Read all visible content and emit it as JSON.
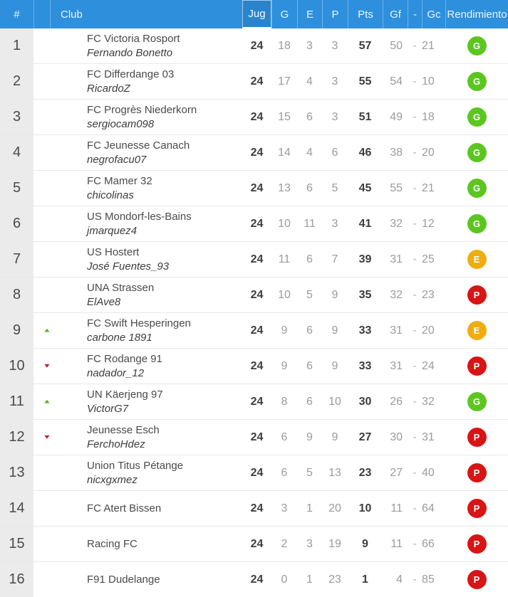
{
  "header": {
    "pos": "#",
    "club": "Club",
    "jug": "Jug",
    "g": "G",
    "e": "E",
    "p": "P",
    "pts": "Pts",
    "gf": "Gf",
    "dash": "-",
    "gc": "Gc",
    "rendimiento": "Rendimiento"
  },
  "score_separator": "-",
  "colors": {
    "header_bg": "#2E8FDC",
    "sorted_column_bg": "#2A84CD",
    "pos_column_bg": "#EBEBEB",
    "badge_green": "#5CC621",
    "badge_orange": "#EFAD10",
    "badge_red": "#D91414",
    "arrow_up_green": "#5AAD20",
    "arrow_down_red": "#C01E28"
  },
  "rows": [
    {
      "pos": "1",
      "movement": "none",
      "club": "FC Victoria Rosport",
      "manager": "Fernando Bonetto",
      "jug": "24",
      "g": "18",
      "e": "3",
      "p": "3",
      "pts": "57",
      "gf": "50",
      "gc": "21",
      "rend": "G"
    },
    {
      "pos": "2",
      "movement": "none",
      "club": "FC Differdange 03",
      "manager": "RicardoZ",
      "jug": "24",
      "g": "17",
      "e": "4",
      "p": "3",
      "pts": "55",
      "gf": "54",
      "gc": "10",
      "rend": "G"
    },
    {
      "pos": "3",
      "movement": "none",
      "club": "FC Progrès Niederkorn",
      "manager": "sergiocam098",
      "jug": "24",
      "g": "15",
      "e": "6",
      "p": "3",
      "pts": "51",
      "gf": "49",
      "gc": "18",
      "rend": "G"
    },
    {
      "pos": "4",
      "movement": "none",
      "club": "FC Jeunesse Canach",
      "manager": "negrofacu07",
      "jug": "24",
      "g": "14",
      "e": "4",
      "p": "6",
      "pts": "46",
      "gf": "38",
      "gc": "20",
      "rend": "G"
    },
    {
      "pos": "5",
      "movement": "none",
      "club": "FC Mamer 32",
      "manager": "chicolinas",
      "jug": "24",
      "g": "13",
      "e": "6",
      "p": "5",
      "pts": "45",
      "gf": "55",
      "gc": "21",
      "rend": "G"
    },
    {
      "pos": "6",
      "movement": "none",
      "club": "US Mondorf-les-Bains",
      "manager": "jmarquez4",
      "jug": "24",
      "g": "10",
      "e": "11",
      "p": "3",
      "pts": "41",
      "gf": "32",
      "gc": "12",
      "rend": "G"
    },
    {
      "pos": "7",
      "movement": "none",
      "club": "US Hostert",
      "manager": "José Fuentes_93",
      "jug": "24",
      "g": "11",
      "e": "6",
      "p": "7",
      "pts": "39",
      "gf": "31",
      "gc": "25",
      "rend": "E"
    },
    {
      "pos": "8",
      "movement": "none",
      "club": "UNA Strassen",
      "manager": "ElAve8",
      "jug": "24",
      "g": "10",
      "e": "5",
      "p": "9",
      "pts": "35",
      "gf": "32",
      "gc": "23",
      "rend": "P"
    },
    {
      "pos": "9",
      "movement": "up",
      "club": "FC Swift Hesperingen",
      "manager": "carbone 1891",
      "jug": "24",
      "g": "9",
      "e": "6",
      "p": "9",
      "pts": "33",
      "gf": "31",
      "gc": "20",
      "rend": "E"
    },
    {
      "pos": "10",
      "movement": "down",
      "club": "FC Rodange 91",
      "manager": "nadador_12",
      "jug": "24",
      "g": "9",
      "e": "6",
      "p": "9",
      "pts": "33",
      "gf": "31",
      "gc": "24",
      "rend": "P"
    },
    {
      "pos": "11",
      "movement": "up",
      "club": "UN Käerjeng 97",
      "manager": "VictorG7",
      "jug": "24",
      "g": "8",
      "e": "6",
      "p": "10",
      "pts": "30",
      "gf": "26",
      "gc": "32",
      "rend": "G"
    },
    {
      "pos": "12",
      "movement": "down",
      "club": "Jeunesse Esch",
      "manager": "FerchoHdez",
      "jug": "24",
      "g": "6",
      "e": "9",
      "p": "9",
      "pts": "27",
      "gf": "30",
      "gc": "31",
      "rend": "P"
    },
    {
      "pos": "13",
      "movement": "none",
      "club": "Union Titus Pétange",
      "manager": "nicxgxmez",
      "jug": "24",
      "g": "6",
      "e": "5",
      "p": "13",
      "pts": "23",
      "gf": "27",
      "gc": "40",
      "rend": "P"
    },
    {
      "pos": "14",
      "movement": "none",
      "club": "FC Atert Bissen",
      "manager": "",
      "jug": "24",
      "g": "3",
      "e": "1",
      "p": "20",
      "pts": "10",
      "gf": "11",
      "gc": "64",
      "rend": "P"
    },
    {
      "pos": "15",
      "movement": "none",
      "club": "Racing FC",
      "manager": "",
      "jug": "24",
      "g": "2",
      "e": "3",
      "p": "19",
      "pts": "9",
      "gf": "11",
      "gc": "66",
      "rend": "P"
    },
    {
      "pos": "16",
      "movement": "none",
      "club": "F91 Dudelange",
      "manager": "",
      "jug": "24",
      "g": "0",
      "e": "1",
      "p": "23",
      "pts": "1",
      "gf": "4",
      "gc": "85",
      "rend": "P"
    }
  ]
}
